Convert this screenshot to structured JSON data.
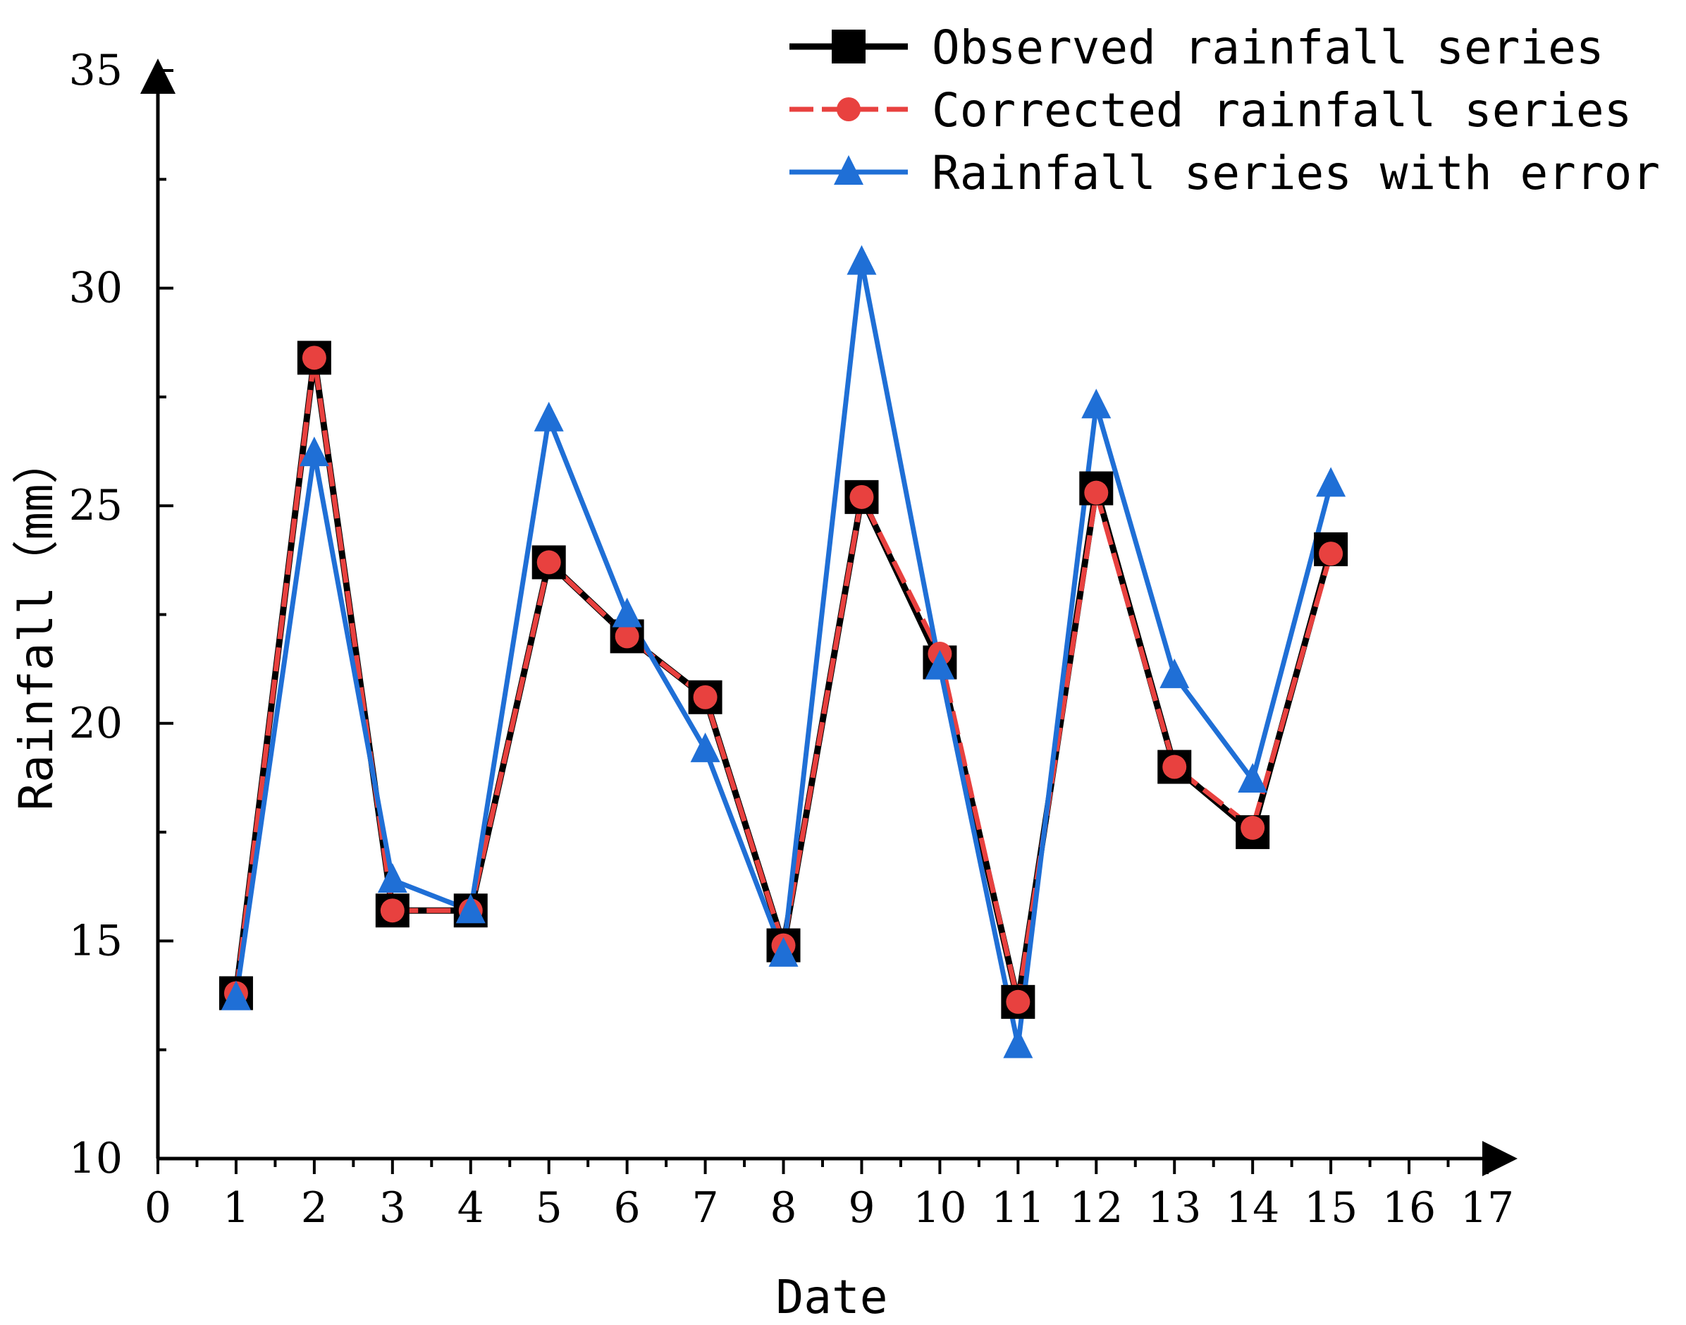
{
  "chart_data": {
    "type": "line",
    "title": "",
    "xlabel": "Date",
    "ylabel": "Rainfall（mm）",
    "xlim": [
      0,
      17
    ],
    "ylim": [
      10,
      35
    ],
    "x_ticks": [
      "0",
      "1",
      "2",
      "3",
      "4",
      "5",
      "6",
      "7",
      "8",
      "9",
      "10",
      "11",
      "12",
      "13",
      "14",
      "15",
      "16",
      "17"
    ],
    "y_ticks": [
      "10",
      "15",
      "20",
      "25",
      "30",
      "35"
    ],
    "x": [
      1,
      2,
      3,
      4,
      5,
      6,
      7,
      8,
      9,
      10,
      11,
      12,
      13,
      14,
      15
    ],
    "grid": false,
    "legend_position": "top-right",
    "series": [
      {
        "name": "Observed rainfall series",
        "color": "#000000",
        "marker": "square",
        "line_style": "solid",
        "values": [
          13.8,
          28.4,
          15.7,
          15.7,
          23.7,
          22.0,
          20.6,
          14.9,
          25.2,
          21.4,
          13.6,
          25.4,
          19.0,
          17.5,
          24.0
        ]
      },
      {
        "name": "Corrected rainfall series",
        "color": "#e8413f",
        "marker": "circle",
        "line_style": "dashed",
        "values": [
          13.8,
          28.4,
          15.7,
          15.7,
          23.7,
          22.0,
          20.6,
          14.9,
          25.2,
          21.6,
          13.6,
          25.3,
          19.0,
          17.6,
          23.9
        ]
      },
      {
        "name": "Rainfall series with error",
        "color": "#1f6fd6",
        "marker": "triangle",
        "line_style": "solid",
        "values": [
          13.7,
          26.2,
          16.4,
          15.7,
          27.0,
          22.5,
          19.4,
          14.7,
          30.6,
          21.3,
          12.6,
          27.3,
          21.1,
          18.7,
          25.5
        ]
      }
    ]
  }
}
